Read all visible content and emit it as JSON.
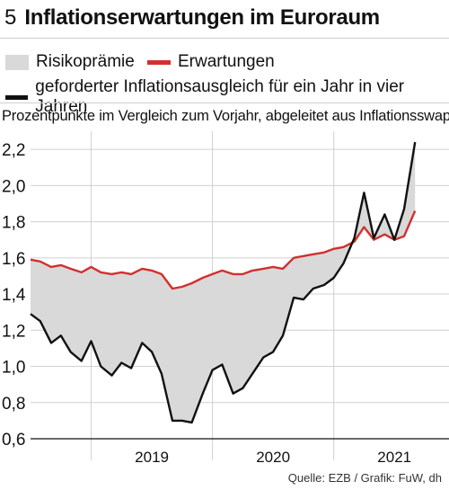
{
  "header": {
    "number": "5",
    "title": "Inflationserwartungen im Euroraum"
  },
  "legend": {
    "items": [
      {
        "label": "Risikoprämie",
        "kind": "area",
        "color": "#d9d9d9"
      },
      {
        "label": "Erwartungen",
        "kind": "line",
        "color": "#d32f2f"
      },
      {
        "label": "geforderter Inflationsausgleich für ein Jahr in vier Jahren",
        "kind": "line",
        "color": "#111111"
      }
    ]
  },
  "subtitle": "Prozentpunkte im Vergleich zum Vorjahr, abgeleitet aus Inflationsswaps",
  "source": "Quelle: EZB / Grafik: FuW, dh",
  "chart_data": {
    "type": "line",
    "title": "Inflationserwartungen im Euroraum",
    "ylim": [
      0.6,
      2.3
    ],
    "xlim": [
      2018.5,
      2021.95
    ],
    "yticks": [
      0.6,
      0.8,
      1.0,
      1.2,
      1.4,
      1.6,
      1.8,
      2.0,
      2.2
    ],
    "ytick_labels": [
      "0,6",
      "0,8",
      "1,0",
      "1,2",
      "1,4",
      "1,6",
      "1,8",
      "2,0",
      "2,2"
    ],
    "xtick_labels": [
      {
        "label": "2019",
        "at": 2019.5
      },
      {
        "label": "2020",
        "at": 2020.5
      },
      {
        "label": "2021",
        "at": 2021.5
      }
    ],
    "year_separators": [
      2019.0,
      2020.0,
      2021.0
    ],
    "grid": true,
    "fill_between": {
      "upper": "Erwartungen",
      "lower": "geforderter Inflationsausgleich für ein Jahr in vier Jahren",
      "label": "Risikoprämie",
      "color": "#d9d9d9"
    },
    "series": [
      {
        "name": "Erwartungen",
        "color": "#d32f2f",
        "points": [
          [
            2018.5,
            1.59
          ],
          [
            2018.58,
            1.58
          ],
          [
            2018.67,
            1.55
          ],
          [
            2018.75,
            1.56
          ],
          [
            2018.83,
            1.54
          ],
          [
            2018.92,
            1.52
          ],
          [
            2019.0,
            1.55
          ],
          [
            2019.08,
            1.52
          ],
          [
            2019.17,
            1.51
          ],
          [
            2019.25,
            1.52
          ],
          [
            2019.33,
            1.51
          ],
          [
            2019.42,
            1.54
          ],
          [
            2019.5,
            1.53
          ],
          [
            2019.58,
            1.51
          ],
          [
            2019.67,
            1.43
          ],
          [
            2019.75,
            1.44
          ],
          [
            2019.83,
            1.46
          ],
          [
            2019.92,
            1.49
          ],
          [
            2020.0,
            1.51
          ],
          [
            2020.08,
            1.53
          ],
          [
            2020.17,
            1.51
          ],
          [
            2020.25,
            1.51
          ],
          [
            2020.33,
            1.53
          ],
          [
            2020.42,
            1.54
          ],
          [
            2020.5,
            1.55
          ],
          [
            2020.58,
            1.54
          ],
          [
            2020.67,
            1.6
          ],
          [
            2020.75,
            1.61
          ],
          [
            2020.83,
            1.62
          ],
          [
            2020.92,
            1.63
          ],
          [
            2021.0,
            1.65
          ],
          [
            2021.08,
            1.66
          ],
          [
            2021.17,
            1.69
          ],
          [
            2021.25,
            1.77
          ],
          [
            2021.33,
            1.7
          ],
          [
            2021.42,
            1.73
          ],
          [
            2021.5,
            1.7
          ],
          [
            2021.58,
            1.72
          ],
          [
            2021.67,
            1.86
          ]
        ]
      },
      {
        "name": "geforderter Inflationsausgleich für ein Jahr in vier Jahren",
        "color": "#111111",
        "points": [
          [
            2018.5,
            1.29
          ],
          [
            2018.58,
            1.25
          ],
          [
            2018.67,
            1.13
          ],
          [
            2018.75,
            1.17
          ],
          [
            2018.83,
            1.08
          ],
          [
            2018.92,
            1.03
          ],
          [
            2019.0,
            1.14
          ],
          [
            2019.08,
            1.0
          ],
          [
            2019.17,
            0.95
          ],
          [
            2019.25,
            1.02
          ],
          [
            2019.33,
            0.99
          ],
          [
            2019.42,
            1.13
          ],
          [
            2019.5,
            1.08
          ],
          [
            2019.58,
            0.96
          ],
          [
            2019.67,
            0.7
          ],
          [
            2019.75,
            0.7
          ],
          [
            2019.83,
            0.69
          ],
          [
            2019.92,
            0.85
          ],
          [
            2020.0,
            0.98
          ],
          [
            2020.08,
            1.01
          ],
          [
            2020.17,
            0.85
          ],
          [
            2020.25,
            0.88
          ],
          [
            2020.33,
            0.96
          ],
          [
            2020.42,
            1.05
          ],
          [
            2020.5,
            1.08
          ],
          [
            2020.58,
            1.17
          ],
          [
            2020.67,
            1.38
          ],
          [
            2020.75,
            1.37
          ],
          [
            2020.83,
            1.43
          ],
          [
            2020.92,
            1.45
          ],
          [
            2021.0,
            1.49
          ],
          [
            2021.08,
            1.57
          ],
          [
            2021.17,
            1.71
          ],
          [
            2021.25,
            1.96
          ],
          [
            2021.33,
            1.71
          ],
          [
            2021.42,
            1.84
          ],
          [
            2021.5,
            1.7
          ],
          [
            2021.58,
            1.87
          ],
          [
            2021.67,
            2.24
          ]
        ]
      }
    ]
  }
}
